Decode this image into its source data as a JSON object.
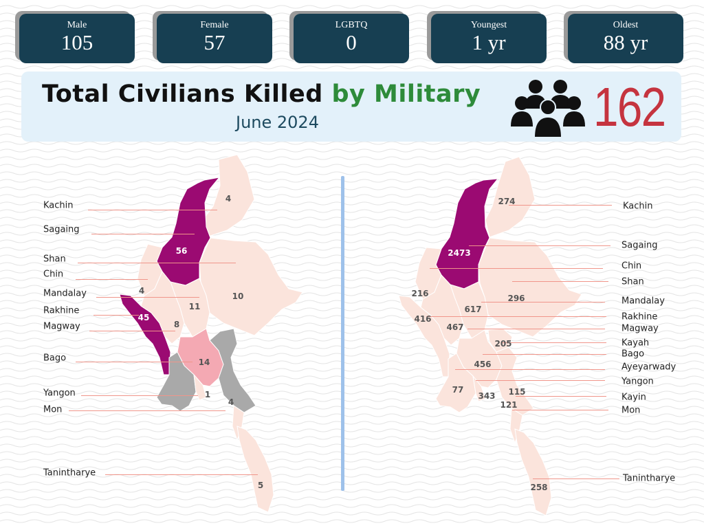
{
  "stats": [
    {
      "label": "Male",
      "value": "105"
    },
    {
      "label": "Female",
      "value": "57"
    },
    {
      "label": "LGBTQ",
      "value": "0"
    },
    {
      "label": "Youngest",
      "value": "1 yr"
    },
    {
      "label": "Oldest",
      "value": "88 yr"
    }
  ],
  "banner": {
    "title_part1": "Total Civilians Killed",
    "title_part2": "by Military",
    "subtitle": "June 2024",
    "total": "162",
    "icon": "people-group-icon"
  },
  "colors": {
    "card": "#173f52",
    "banner": "#e3f1fa",
    "accent_green": "#2e8b3a",
    "accent_red": "#c5343f",
    "highlight": "#9b0a72",
    "medium": "#f4a9b3",
    "gray": "#a9a9a9",
    "base": "#fbe4dc"
  },
  "left_map": {
    "regions": [
      {
        "name": "Kachin",
        "value": "4"
      },
      {
        "name": "Sagaing",
        "value": "56"
      },
      {
        "name": "Shan",
        "value": "10"
      },
      {
        "name": "Chin",
        "value": "4"
      },
      {
        "name": "Mandalay",
        "value": "11"
      },
      {
        "name": "Rakhine",
        "value": "45"
      },
      {
        "name": "Magway",
        "value": "8"
      },
      {
        "name": "Bago",
        "value": "14"
      },
      {
        "name": "Yangon",
        "value": "1"
      },
      {
        "name": "Mon",
        "value": "4"
      },
      {
        "name": "Tanintharye",
        "value": "5"
      }
    ]
  },
  "right_map": {
    "regions": [
      {
        "name": "Kachin",
        "value": "274"
      },
      {
        "name": "Sagaing",
        "value": "2473"
      },
      {
        "name": "Chin",
        "value": "216"
      },
      {
        "name": "Shan",
        "value": "296"
      },
      {
        "name": "Mandalay",
        "value": "617"
      },
      {
        "name": "Rakhine",
        "value": "416"
      },
      {
        "name": "Magway",
        "value": "467"
      },
      {
        "name": "Kayah",
        "value": "205"
      },
      {
        "name": "Bago",
        "value": "456"
      },
      {
        "name": "Ayeyarwady",
        "value": "77"
      },
      {
        "name": "Yangon",
        "value": "343"
      },
      {
        "name": "Kayin",
        "value": "115"
      },
      {
        "name": "Mon",
        "value": "121"
      },
      {
        "name": "Tanintharye",
        "value": "258"
      }
    ]
  }
}
